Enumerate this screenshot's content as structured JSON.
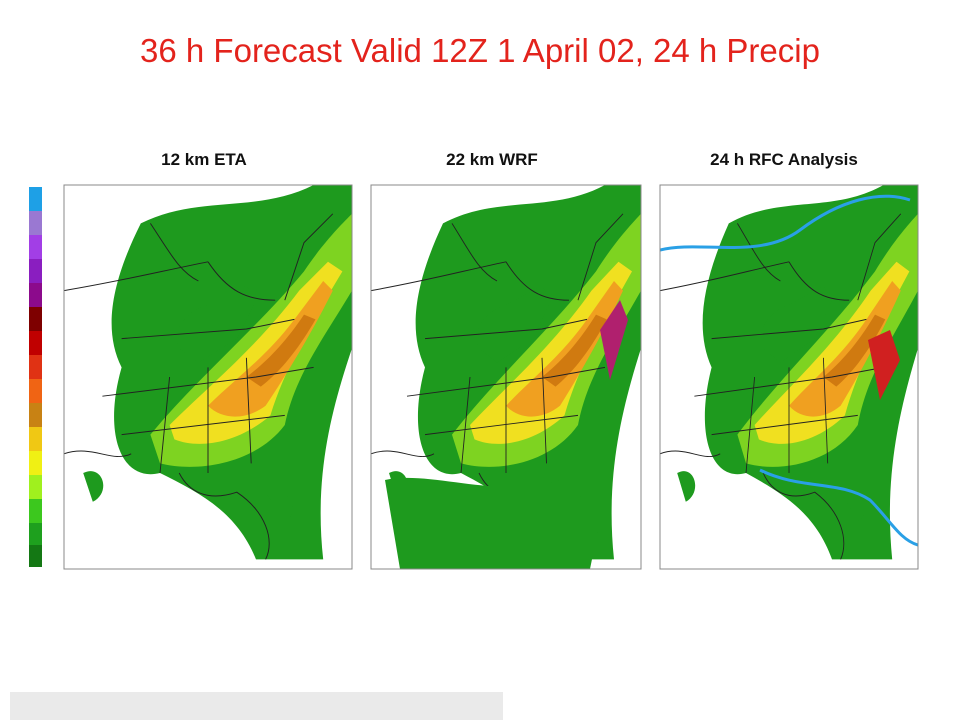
{
  "header": {
    "title": "36 h Forecast Valid 12Z 1 April 02, 24 h Precip"
  },
  "panels": [
    {
      "label": "12 km ETA"
    },
    {
      "label": "22 km WRF"
    },
    {
      "label": "24 h RFC Analysis"
    }
  ]
}
